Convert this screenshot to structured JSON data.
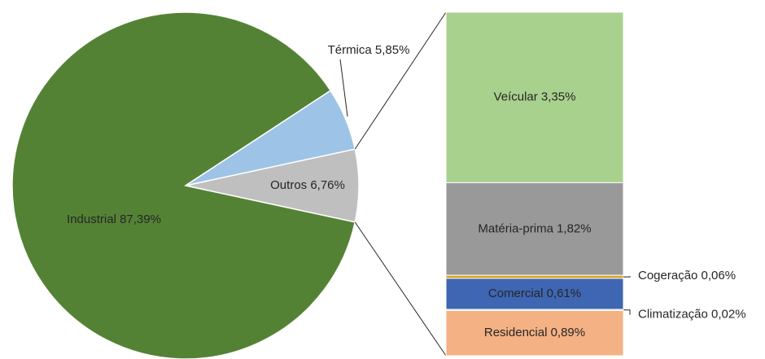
{
  "chart_data": {
    "type": "bar-of-pie",
    "pie": {
      "values": [
        87.39,
        5.85,
        6.76
      ],
      "value_labels": [
        "Industrial 87,39%",
        "Térmica 5,85%",
        "Outros 6,76%"
      ],
      "colors": [
        "#548235",
        "#9dc3e6",
        "#bfbfbf"
      ]
    },
    "detail": {
      "values": [
        3.35,
        1.82,
        0.06,
        0.61,
        0.02,
        0.89
      ],
      "value_labels": [
        "Veícular 3,35%",
        "Matéria-prima 1,82%",
        "Cogeração 0,06%",
        "Comercial 0,61%",
        "Climatização 0,02%",
        "Residencial 0,89%"
      ],
      "colors": [
        "#a9d18e",
        "#999999",
        "#d9a520",
        "#3e66b3",
        "#f2c46d",
        "#f4b183"
      ]
    }
  }
}
